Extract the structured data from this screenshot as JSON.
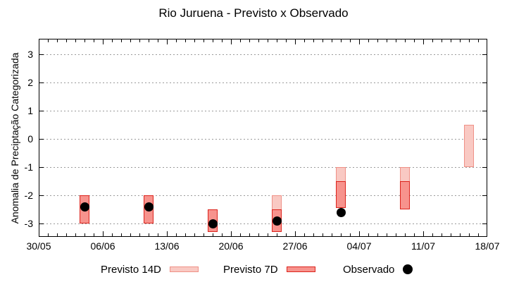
{
  "title": "Rio Juruena - Previsto x Observado",
  "axes": {
    "y_label": "Anomalia de Preciptação Categorizada",
    "y_ticks": [
      3,
      2,
      1,
      0,
      -1,
      -2,
      -3
    ],
    "x_tick_labels": [
      "30/05",
      "06/06",
      "13/06",
      "20/06",
      "27/06",
      "04/07",
      "11/07",
      "18/07"
    ]
  },
  "legend": {
    "items": [
      {
        "label": "Previsto 14D",
        "swatch": "bar-light"
      },
      {
        "label": "Previsto 7D",
        "swatch": "bar-dark"
      },
      {
        "label": "Observado",
        "swatch": "black-dot"
      }
    ]
  },
  "colors": {
    "p14_fill": "#f9c9c3",
    "p14_border": "#ef9187",
    "p7_fill": "#f7938d",
    "p7_border": "#dc231c",
    "observed": "#000000",
    "grid": "#9a9a9a"
  },
  "chart_data": {
    "type": "bar",
    "subtype": "forecast-range-bars-with-observed-dots",
    "title": "Rio Juruena - Previsto x Observado",
    "xlabel": "",
    "ylabel": "Anomalia de Preciptação Categorizada",
    "ylim": [
      -3.5,
      3.55
    ],
    "x_tick_labels": [
      "30/05",
      "06/06",
      "13/06",
      "20/06",
      "27/06",
      "04/07",
      "11/07",
      "18/07"
    ],
    "grid": "dotted horizontal lines at integer y values",
    "legend_position": "below chart",
    "points": [
      {
        "date": "04/06",
        "day_offset": 5,
        "previsto_14d": [
          -3.0,
          -2.0
        ],
        "previsto_7d": [
          -3.0,
          -2.0
        ],
        "observado": -2.4
      },
      {
        "date": "11/06",
        "day_offset": 12,
        "previsto_14d": [
          -3.0,
          -2.0
        ],
        "previsto_7d": [
          -3.0,
          -2.0
        ],
        "observado": -2.4
      },
      {
        "date": "18/06",
        "day_offset": 19,
        "previsto_14d": [
          -3.3,
          -2.5
        ],
        "previsto_7d": [
          -3.3,
          -2.5
        ],
        "observado": -3.0
      },
      {
        "date": "25/06",
        "day_offset": 26,
        "previsto_14d": [
          -3.3,
          -2.0
        ],
        "previsto_7d": [
          -3.3,
          -2.5
        ],
        "observado": -2.9
      },
      {
        "date": "02/07",
        "day_offset": 33,
        "previsto_14d": [
          -2.45,
          -1.0
        ],
        "previsto_7d": [
          -2.45,
          -1.5
        ],
        "observado": -2.6
      },
      {
        "date": "09/07",
        "day_offset": 40,
        "previsto_14d": [
          -2.5,
          -1.0
        ],
        "previsto_7d": [
          -2.5,
          -1.5
        ],
        "observado": null
      },
      {
        "date": "16/07",
        "day_offset": 47,
        "previsto_14d": [
          -1.0,
          0.5
        ],
        "previsto_7d": null,
        "observado": null
      }
    ],
    "series": [
      {
        "name": "Previsto 14D",
        "type": "range-bar"
      },
      {
        "name": "Previsto 7D",
        "type": "range-bar"
      },
      {
        "name": "Observado",
        "type": "scatter"
      }
    ]
  }
}
